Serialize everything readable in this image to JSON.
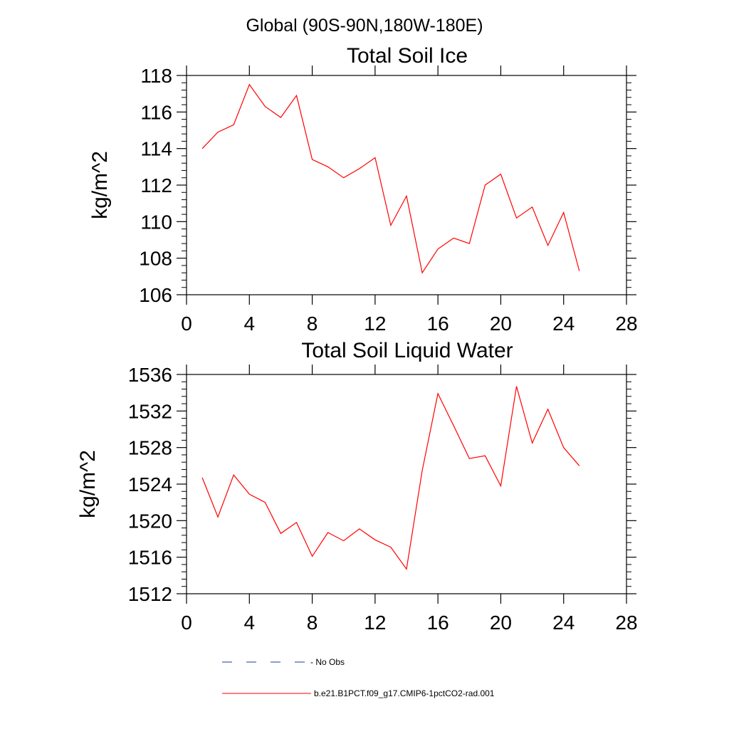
{
  "suptitle": "Global (90S-90N,180W-180E)",
  "colors": {
    "series": "#ff0000",
    "no_obs": "#1f3a93",
    "axis": "#000000"
  },
  "chart_data": [
    {
      "type": "line",
      "title": "Total Soil Ice",
      "ylabel": "kg/m^2",
      "xlabel": "",
      "xlim": [
        0,
        28
      ],
      "ylim": [
        106,
        118
      ],
      "xticks": [
        0,
        4,
        8,
        12,
        16,
        20,
        24,
        28
      ],
      "yticks": [
        106,
        108,
        110,
        112,
        114,
        116,
        118
      ],
      "grid": false,
      "series": [
        {
          "name": "b.e21.B1PCT.f09_g17.CMIP6-1pctCO2-rad.001",
          "color": "#ff0000",
          "x": [
            1,
            2,
            3,
            4,
            5,
            6,
            7,
            8,
            9,
            10,
            11,
            12,
            13,
            14,
            15,
            16,
            17,
            18,
            19,
            20,
            21,
            22,
            23,
            24,
            25
          ],
          "y": [
            114.0,
            114.9,
            115.3,
            117.5,
            116.3,
            115.7,
            116.9,
            113.4,
            113.0,
            112.4,
            112.9,
            113.5,
            109.8,
            111.4,
            107.2,
            108.5,
            109.1,
            108.8,
            112.0,
            112.6,
            110.2,
            110.8,
            108.7,
            110.5,
            107.3
          ]
        }
      ]
    },
    {
      "type": "line",
      "title": "Total Soil Liquid Water",
      "ylabel": "kg/m^2",
      "xlabel": "",
      "xlim": [
        0,
        28
      ],
      "ylim": [
        1512,
        1536
      ],
      "xticks": [
        0,
        4,
        8,
        12,
        16,
        20,
        24,
        28
      ],
      "yticks": [
        1512,
        1516,
        1520,
        1524,
        1528,
        1532,
        1536
      ],
      "grid": false,
      "series": [
        {
          "name": "b.e21.B1PCT.f09_g17.CMIP6-1pctCO2-rad.001",
          "color": "#ff0000",
          "x": [
            1,
            2,
            3,
            4,
            5,
            6,
            7,
            8,
            9,
            10,
            11,
            12,
            13,
            14,
            15,
            16,
            17,
            18,
            19,
            20,
            21,
            22,
            23,
            24,
            25
          ],
          "y": [
            1524.7,
            1520.4,
            1525.0,
            1522.9,
            1522.0,
            1518.6,
            1519.8,
            1516.1,
            1518.7,
            1517.8,
            1519.1,
            1517.9,
            1517.1,
            1514.7,
            1525.5,
            1533.9,
            1530.4,
            1526.8,
            1527.1,
            1523.8,
            1534.7,
            1528.5,
            1532.2,
            1528.0,
            1526.0
          ]
        }
      ]
    }
  ],
  "legend": {
    "items": [
      {
        "label": "No Obs",
        "style": "dashed",
        "color": "#1f3a93"
      },
      {
        "label": "b.e21.B1PCT.f09_g17.CMIP6-1pctCO2-rad.001",
        "style": "solid",
        "color": "#ff0000"
      }
    ]
  }
}
